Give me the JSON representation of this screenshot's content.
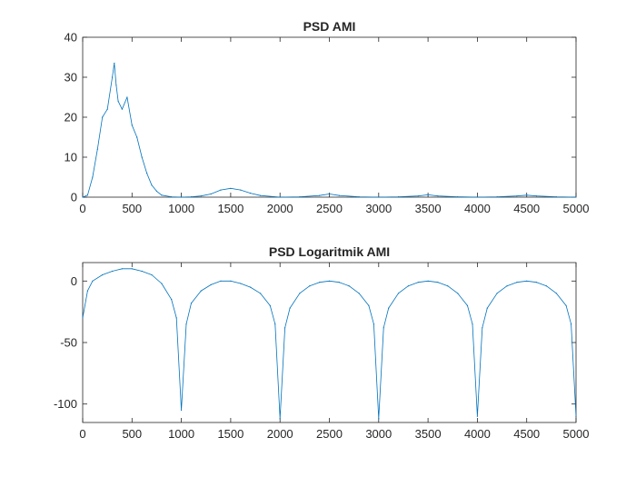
{
  "chart_data": [
    {
      "type": "line",
      "title": "PSD AMI",
      "xlabel": "",
      "ylabel": "",
      "xlim": [
        0,
        5000
      ],
      "ylim": [
        0,
        40
      ],
      "xticks": [
        0,
        500,
        1000,
        1500,
        2000,
        2500,
        3000,
        3500,
        4000,
        4500,
        5000
      ],
      "yticks": [
        0,
        10,
        20,
        30,
        40
      ],
      "grid": false,
      "color": "#0072BD",
      "series": [
        {
          "x": [
            0,
            50,
            100,
            150,
            200,
            250,
            300,
            320,
            340,
            360,
            400,
            450,
            500,
            550,
            600,
            650,
            700,
            750,
            800,
            900,
            1000,
            1100,
            1200,
            1300,
            1400,
            1500,
            1600,
            1700,
            1800,
            2000,
            2200,
            2400,
            2500,
            2600,
            2800,
            3000,
            3200,
            3400,
            3500,
            3600,
            3800,
            4000,
            4200,
            4400,
            4500,
            4600,
            4800,
            5000
          ],
          "values": [
            0,
            0.5,
            5,
            12,
            20,
            22,
            30,
            33.5,
            28,
            24,
            22,
            25,
            18,
            15,
            10,
            6,
            3,
            1.5,
            0.5,
            0.1,
            0,
            0.1,
            0.3,
            0.8,
            1.8,
            2.2,
            1.8,
            1.0,
            0.4,
            0,
            0.1,
            0.4,
            0.8,
            0.4,
            0.1,
            0,
            0.1,
            0.3,
            0.6,
            0.3,
            0.1,
            0,
            0.1,
            0.3,
            0.5,
            0.3,
            0.1,
            0
          ]
        }
      ]
    },
    {
      "type": "line",
      "title": "PSD Logaritmik AMI",
      "xlabel": "",
      "ylabel": "",
      "xlim": [
        0,
        5000
      ],
      "ylim": [
        -115,
        15
      ],
      "xticks": [
        0,
        500,
        1000,
        1500,
        2000,
        2500,
        3000,
        3500,
        4000,
        4500,
        5000
      ],
      "yticks": [
        -100,
        -50,
        0
      ],
      "grid": false,
      "color": "#0072BD",
      "series": [
        {
          "x": [
            0,
            50,
            100,
            200,
            300,
            400,
            500,
            600,
            700,
            800,
            900,
            950,
            1000,
            1050,
            1100,
            1200,
            1300,
            1400,
            1500,
            1600,
            1700,
            1800,
            1900,
            1950,
            2000,
            2050,
            2100,
            2200,
            2300,
            2400,
            2500,
            2600,
            2700,
            2800,
            2900,
            2950,
            3000,
            3050,
            3100,
            3200,
            3300,
            3400,
            3500,
            3600,
            3700,
            3800,
            3900,
            3950,
            4000,
            4050,
            4100,
            4200,
            4300,
            4400,
            4500,
            4600,
            4700,
            4800,
            4900,
            4950,
            5000
          ],
          "values": [
            -30,
            -8,
            0,
            5,
            8,
            10,
            10,
            8,
            5,
            -2,
            -15,
            -30,
            -105,
            -35,
            -18,
            -8,
            -3,
            0,
            0,
            -2,
            -5,
            -10,
            -20,
            -35,
            -112,
            -38,
            -22,
            -10,
            -4,
            -1,
            0,
            -1,
            -4,
            -10,
            -20,
            -35,
            -112,
            -38,
            -22,
            -10,
            -4,
            -1,
            0,
            -1,
            -4,
            -10,
            -20,
            -35,
            -110,
            -38,
            -22,
            -10,
            -4,
            -1,
            0,
            -1,
            -4,
            -10,
            -20,
            -35,
            -110
          ]
        }
      ]
    }
  ]
}
